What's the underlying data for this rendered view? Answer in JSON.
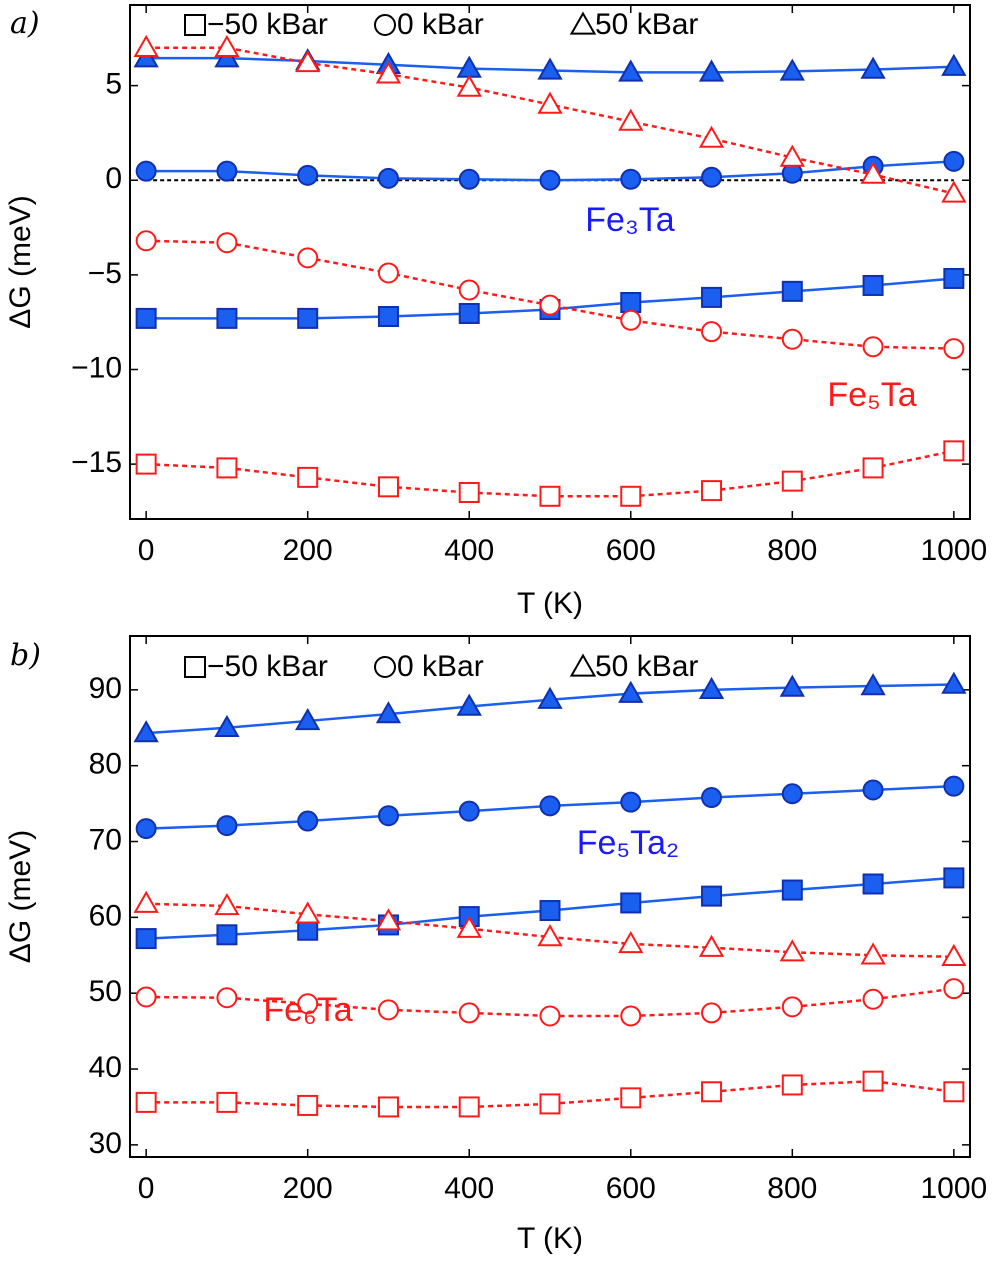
{
  "chart_data": [
    {
      "type": "line",
      "panel_label": "a)",
      "x_label": "T (K)",
      "y_label": "ΔG (meV)",
      "x": [
        0,
        100,
        200,
        300,
        400,
        500,
        600,
        700,
        800,
        900,
        1000
      ],
      "xlim": [
        -20,
        1020
      ],
      "xticks": [
        0,
        200,
        400,
        600,
        800,
        1000
      ],
      "ylim": [
        -17.9,
        9.26
      ],
      "yticks": [
        5,
        0,
        {
          "value": -5,
          "label": "−5"
        },
        {
          "value": -10,
          "label": "−10"
        },
        {
          "value": -15,
          "label": "−15"
        }
      ],
      "hline": 0,
      "legend": [
        {
          "label": "−50 kBar",
          "marker": "square"
        },
        {
          "label": "0 kBar",
          "marker": "circle"
        },
        {
          "label": "50 kBar",
          "marker": "triangle"
        }
      ],
      "annotations": [
        "Fe₃Ta",
        "Fe₅Ta"
      ],
      "series": [
        {
          "color": "#1a5ff0",
          "marker": "triangle",
          "filled": true,
          "dashed": false,
          "values": [
            6.45,
            6.45,
            6.3,
            6.1,
            5.9,
            5.8,
            5.7,
            5.7,
            5.75,
            5.85,
            6.0
          ]
        },
        {
          "color": "#1a5ff0",
          "marker": "circle",
          "filled": true,
          "dashed": false,
          "values": [
            0.48,
            0.48,
            0.26,
            0.1,
            0.05,
            0,
            0.05,
            0.16,
            0.37,
            0.74,
            1.0
          ]
        },
        {
          "color": "#1a5ff0",
          "marker": "square",
          "filled": true,
          "dashed": false,
          "values": [
            -7.3,
            -7.3,
            -7.3,
            -7.2,
            -7.04,
            -6.83,
            -6.46,
            -6.19,
            -5.87,
            -5.56,
            -5.19
          ]
        },
        {
          "color": "#ff1a1a",
          "marker": "triangle",
          "filled": false,
          "dashed": true,
          "values": [
            7.0,
            7.0,
            6.2,
            5.6,
            4.9,
            4.0,
            3.1,
            2.2,
            1.2,
            0.3,
            -0.7
          ]
        },
        {
          "color": "#ff1a1a",
          "marker": "circle",
          "filled": false,
          "dashed": true,
          "values": [
            -3.2,
            -3.3,
            -4.1,
            -4.9,
            -5.8,
            -6.6,
            -7.4,
            -8.0,
            -8.4,
            -8.8,
            -8.9
          ]
        },
        {
          "color": "#ff1a1a",
          "marker": "square",
          "filled": false,
          "dashed": true,
          "values": [
            -15.0,
            -15.2,
            -15.7,
            -16.2,
            -16.5,
            -16.7,
            -16.7,
            -16.4,
            -15.9,
            -15.2,
            -14.3
          ]
        }
      ]
    },
    {
      "type": "line",
      "panel_label": "b)",
      "x_label": "T (K)",
      "y_label": "ΔG (meV)",
      "x": [
        0,
        100,
        200,
        300,
        400,
        500,
        600,
        700,
        800,
        900,
        1000
      ],
      "xlim": [
        -20,
        1020
      ],
      "xticks": [
        0,
        200,
        400,
        600,
        800,
        1000
      ],
      "ylim": [
        28.4,
        97.1
      ],
      "yticks": [
        30,
        40,
        50,
        60,
        70,
        80,
        90
      ],
      "legend": [
        {
          "label": "−50 kBar",
          "marker": "square"
        },
        {
          "label": "0 kBar",
          "marker": "circle"
        },
        {
          "label": "50 kBar",
          "marker": "triangle"
        }
      ],
      "annotations": [
        "Fe₅Ta₂",
        "Fe₆Ta"
      ],
      "series": [
        {
          "color": "#1a5ff0",
          "marker": "triangle",
          "filled": true,
          "dashed": false,
          "values": [
            84.3,
            85.0,
            85.9,
            86.8,
            87.8,
            88.7,
            89.5,
            90.0,
            90.3,
            90.5,
            90.7
          ]
        },
        {
          "color": "#1a5ff0",
          "marker": "circle",
          "filled": true,
          "dashed": false,
          "values": [
            71.7,
            72.1,
            72.7,
            73.4,
            74.0,
            74.7,
            75.2,
            75.8,
            76.3,
            76.8,
            77.3
          ]
        },
        {
          "color": "#1a5ff0",
          "marker": "square",
          "filled": true,
          "dashed": false,
          "values": [
            57.2,
            57.7,
            58.3,
            59.0,
            60.1,
            60.9,
            61.9,
            62.8,
            63.6,
            64.4,
            65.2
          ]
        },
        {
          "color": "#ff1a1a",
          "marker": "triangle",
          "filled": false,
          "dashed": true,
          "values": [
            61.8,
            61.5,
            60.4,
            59.5,
            58.5,
            57.4,
            56.5,
            56.0,
            55.4,
            55.0,
            54.8
          ]
        },
        {
          "color": "#ff1a1a",
          "marker": "circle",
          "filled": false,
          "dashed": true,
          "values": [
            49.5,
            49.4,
            48.6,
            47.8,
            47.4,
            47.0,
            47.0,
            47.4,
            48.2,
            49.2,
            50.6
          ]
        },
        {
          "color": "#ff1a1a",
          "marker": "square",
          "filled": false,
          "dashed": true,
          "values": [
            35.6,
            35.6,
            35.2,
            35.0,
            35.0,
            35.4,
            36.2,
            37.0,
            37.9,
            38.4,
            37.0
          ]
        }
      ]
    }
  ]
}
